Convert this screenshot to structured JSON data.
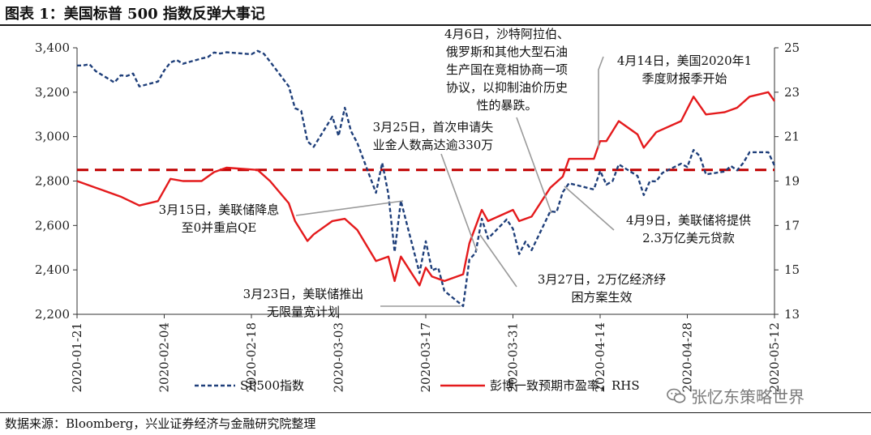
{
  "header": {
    "title": "图表 1：美国标普 500 指数反弹大事记"
  },
  "footer": {
    "source": "数据来源：Bloomberg，兴业证券经济与金融研究院整理"
  },
  "watermark": {
    "text": "张忆东策略世界",
    "icon": "wechat-icon",
    "color": "#7a7a7a"
  },
  "chart_data": {
    "type": "line",
    "title": "",
    "xlabel": "",
    "ylabel": "",
    "x_ticks": [
      "2020-01-21",
      "2020-02-04",
      "2020-02-18",
      "2020-03-03",
      "2020-03-17",
      "2020-03-31",
      "2020-04-14",
      "2020-04-28",
      "2020-05-12"
    ],
    "y_left": {
      "range": [
        2200,
        3400
      ],
      "ticks": [
        "2,200",
        "2,400",
        "2,600",
        "2,800",
        "3,000",
        "3,200",
        "3,400"
      ]
    },
    "y_right": {
      "range": [
        13,
        25
      ],
      "ticks": [
        "13",
        "15",
        "17",
        "19",
        "21",
        "23",
        "25"
      ]
    },
    "grid": false,
    "reference_line": {
      "axis": "left",
      "value": 2850,
      "style": "dashed",
      "color": "#c00000"
    },
    "legend_position": "bottom",
    "series": [
      {
        "name": "SP500指数",
        "axis": "left",
        "style": "dashed",
        "color": "#1f3f7a",
        "x": [
          "2020-01-21",
          "2020-01-22",
          "2020-01-23",
          "2020-01-24",
          "2020-01-27",
          "2020-01-28",
          "2020-01-29",
          "2020-01-30",
          "2020-01-31",
          "2020-02-03",
          "2020-02-04",
          "2020-02-05",
          "2020-02-06",
          "2020-02-07",
          "2020-02-10",
          "2020-02-11",
          "2020-02-12",
          "2020-02-13",
          "2020-02-14",
          "2020-02-18",
          "2020-02-19",
          "2020-02-20",
          "2020-02-21",
          "2020-02-24",
          "2020-02-25",
          "2020-02-26",
          "2020-02-27",
          "2020-02-28",
          "2020-03-02",
          "2020-03-03",
          "2020-03-04",
          "2020-03-05",
          "2020-03-06",
          "2020-03-09",
          "2020-03-10",
          "2020-03-11",
          "2020-03-12",
          "2020-03-13",
          "2020-03-16",
          "2020-03-17",
          "2020-03-18",
          "2020-03-19",
          "2020-03-20",
          "2020-03-23",
          "2020-03-24",
          "2020-03-25",
          "2020-03-26",
          "2020-03-27",
          "2020-03-30",
          "2020-03-31",
          "2020-04-01",
          "2020-04-02",
          "2020-04-03",
          "2020-04-06",
          "2020-04-07",
          "2020-04-08",
          "2020-04-09",
          "2020-04-13",
          "2020-04-14",
          "2020-04-15",
          "2020-04-16",
          "2020-04-17",
          "2020-04-20",
          "2020-04-21",
          "2020-04-22",
          "2020-04-23",
          "2020-04-24",
          "2020-04-27",
          "2020-04-28",
          "2020-04-29",
          "2020-04-30",
          "2020-05-01",
          "2020-05-04",
          "2020-05-05",
          "2020-05-06",
          "2020-05-07",
          "2020-05-08",
          "2020-05-11",
          "2020-05-12"
        ],
        "values": [
          3320,
          3321,
          3326,
          3295,
          3244,
          3276,
          3273,
          3284,
          3226,
          3248,
          3298,
          3334,
          3345,
          3328,
          3352,
          3358,
          3379,
          3374,
          3380,
          3371,
          3386,
          3373,
          3338,
          3226,
          3128,
          3116,
          2979,
          2954,
          3090,
          3003,
          3130,
          3024,
          2972,
          2747,
          2882,
          2741,
          2481,
          2711,
          2386,
          2529,
          2398,
          2409,
          2305,
          2237,
          2447,
          2476,
          2630,
          2541,
          2627,
          2585,
          2471,
          2527,
          2489,
          2664,
          2660,
          2750,
          2790,
          2762,
          2846,
          2784,
          2800,
          2875,
          2823,
          2737,
          2800,
          2798,
          2837,
          2878,
          2863,
          2940,
          2912,
          2830,
          2843,
          2868,
          2848,
          2882,
          2930,
          2930,
          2870
        ]
      },
      {
        "name": "彭博一致预期市盈率，RHS",
        "axis": "right",
        "style": "solid",
        "color": "#e41a1c",
        "x": [
          "2020-01-21",
          "2020-01-24",
          "2020-01-28",
          "2020-01-31",
          "2020-02-03",
          "2020-02-05",
          "2020-02-07",
          "2020-02-10",
          "2020-02-12",
          "2020-02-14",
          "2020-02-19",
          "2020-02-21",
          "2020-02-24",
          "2020-02-25",
          "2020-02-27",
          "2020-02-28",
          "2020-03-02",
          "2020-03-04",
          "2020-03-06",
          "2020-03-09",
          "2020-03-11",
          "2020-03-12",
          "2020-03-13",
          "2020-03-16",
          "2020-03-17",
          "2020-03-18",
          "2020-03-20",
          "2020-03-23",
          "2020-03-24",
          "2020-03-26",
          "2020-03-27",
          "2020-03-31",
          "2020-04-01",
          "2020-04-03",
          "2020-04-06",
          "2020-04-08",
          "2020-04-09",
          "2020-04-13",
          "2020-04-14",
          "2020-04-15",
          "2020-04-17",
          "2020-04-20",
          "2020-04-21",
          "2020-04-23",
          "2020-04-27",
          "2020-04-29",
          "2020-05-01",
          "2020-05-04",
          "2020-05-06",
          "2020-05-08",
          "2020-05-11",
          "2020-05-12"
        ],
        "values": [
          19.0,
          18.7,
          18.3,
          17.9,
          18.1,
          19.1,
          19.0,
          19.0,
          19.4,
          19.6,
          19.5,
          19.0,
          18.0,
          17.2,
          16.3,
          16.6,
          17.2,
          17.3,
          16.8,
          15.4,
          15.6,
          14.5,
          15.6,
          14.3,
          15.1,
          14.7,
          14.5,
          14.8,
          16.2,
          17.7,
          17.2,
          17.7,
          17.2,
          17.4,
          18.7,
          19.2,
          20.0,
          20.0,
          20.8,
          20.8,
          21.7,
          21.1,
          20.5,
          21.2,
          21.7,
          22.8,
          22.0,
          22.1,
          22.3,
          22.8,
          23.0,
          22.6
        ]
      }
    ],
    "annotations": [
      {
        "lines": [
          "4月6日，沙特阿拉伯、",
          "俄罗斯和其他大型石油",
          "生产国在竞相协商一项",
          "协议，以抑制油价历史",
          "性的暴跌。"
        ],
        "date": "2020-04-06"
      },
      {
        "lines": [
          "4月14日，美国2020年1",
          "季度财报季开始"
        ],
        "date": "2020-04-14"
      },
      {
        "lines": [
          "3月25日，首次申请失",
          "业金人数高达逾330万"
        ],
        "date": "2020-03-25"
      },
      {
        "lines": [
          "3月15日，美联储降息",
          "至0并重启QE"
        ],
        "date": "2020-03-15"
      },
      {
        "lines": [
          "4月9日，美联储将提供",
          "2.3万亿美元贷款"
        ],
        "date": "2020-04-09"
      },
      {
        "lines": [
          "3月27日，2万亿经济纾",
          "困方案生效"
        ],
        "date": "2020-03-27"
      },
      {
        "lines": [
          "3月23日，美联储推出",
          "无限量宽计划"
        ],
        "date": "2020-03-23"
      }
    ]
  }
}
